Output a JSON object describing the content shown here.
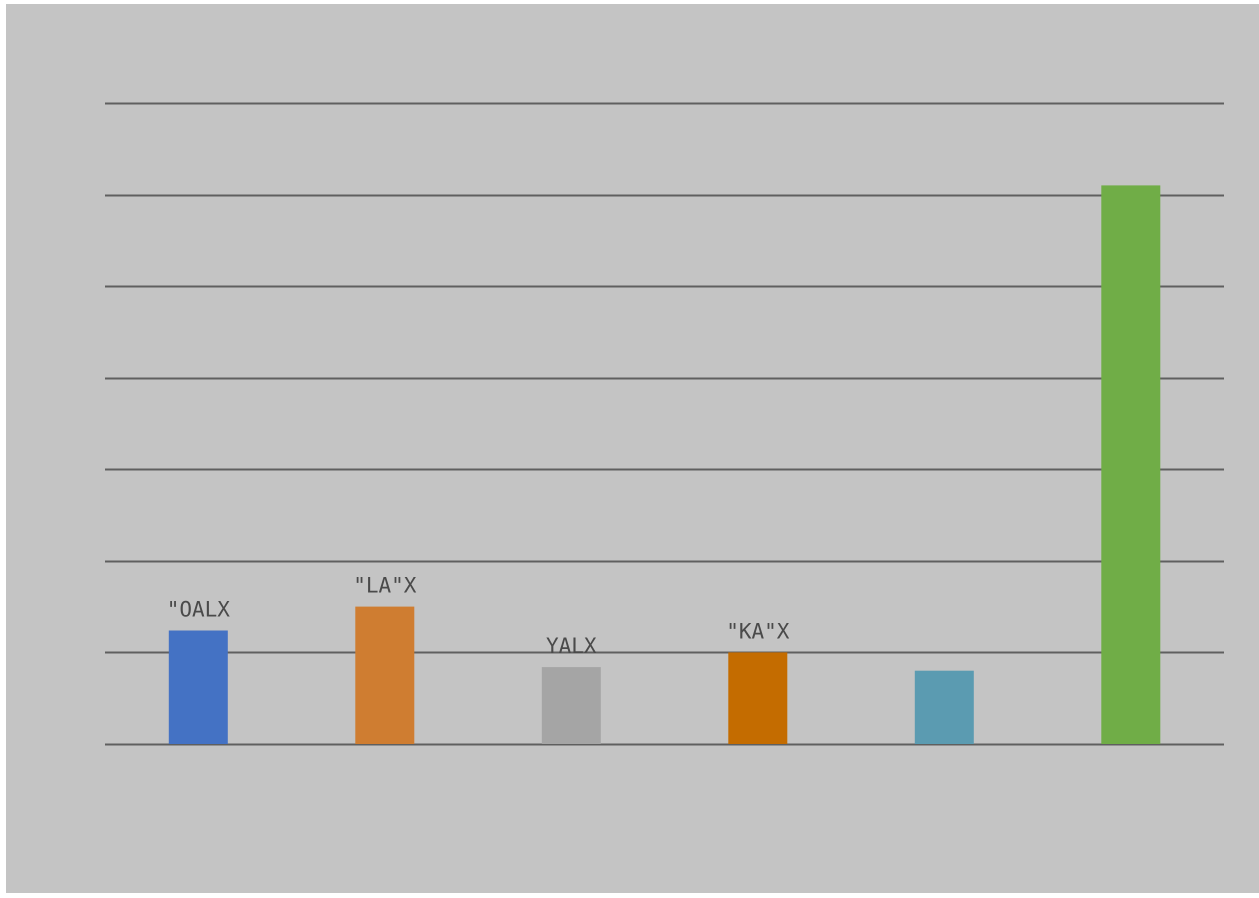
{
  "colors": {
    "background": "#c4c4c4",
    "page_border": "#ffffff",
    "gridline": "#5f5f5f",
    "label_text": "#4a4a4a"
  },
  "chart_data": {
    "type": "bar",
    "categories": [
      "",
      "",
      "",
      "",
      "",
      ""
    ],
    "values": [
      1.24,
      1.5,
      0.84,
      1.0,
      0.8,
      6.1
    ],
    "data_labels": [
      "\"OALX",
      "\"LA\"X",
      "YALX",
      "\"KA\"X",
      "",
      ""
    ],
    "bar_colors": [
      "#4472c4",
      "#cf7d31",
      "#a5a5a5",
      "#c46c00",
      "#5b9bb1",
      "#70ad47"
    ],
    "ylim": [
      0,
      7
    ],
    "grid_step": 1,
    "grid": true,
    "legend": "none",
    "title": "",
    "xlabel": "",
    "ylabel": ""
  }
}
